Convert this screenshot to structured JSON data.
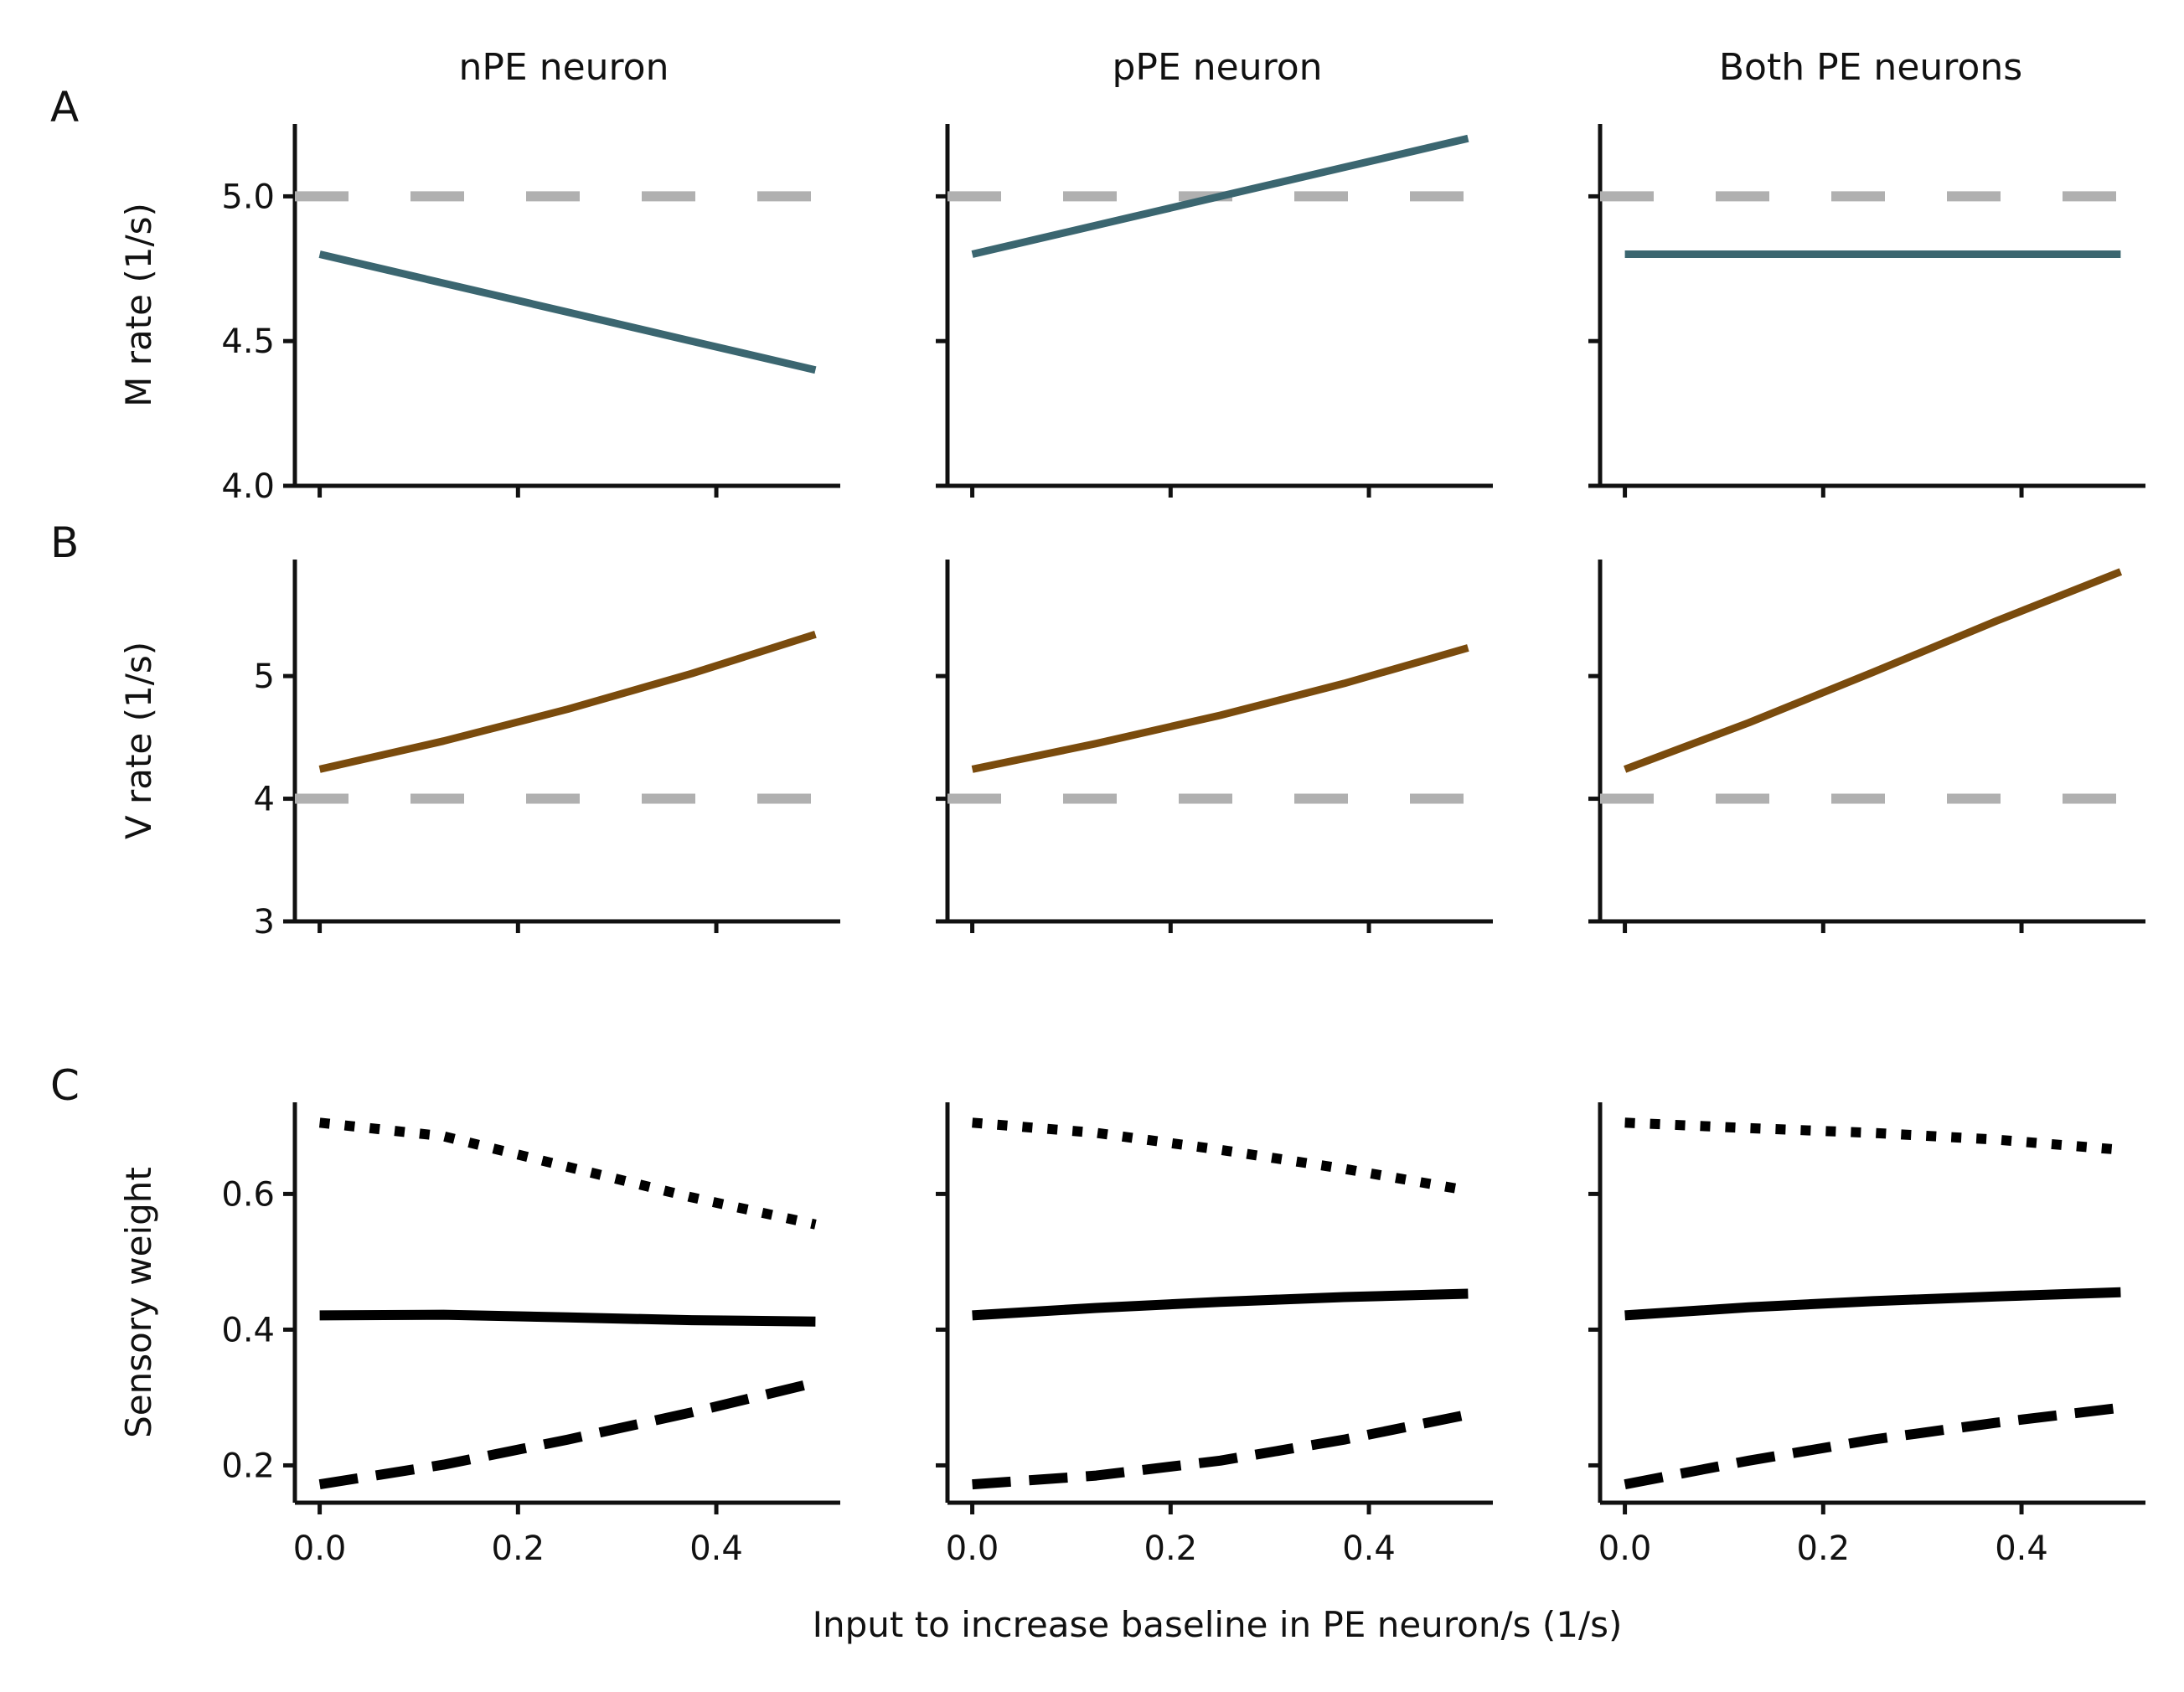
{
  "chart_data": {
    "type": "line",
    "columns": [
      "nPE neuron",
      "pPE neuron",
      "Both PE neurons"
    ],
    "row_letters": [
      "A",
      "B",
      "C"
    ],
    "xlabel": "Input to increase baseline in PE neuron/s (1/s)",
    "x_ticks": [
      0.0,
      0.2,
      0.4
    ],
    "x_tick_labels": [
      "0.0",
      "0.2",
      "0.4"
    ],
    "xlim": [
      -0.025,
      0.525
    ],
    "x": [
      0.0,
      0.125,
      0.25,
      0.375,
      0.5
    ],
    "colors": {
      "mean": "#3b6670",
      "variance": "#7a4b0d",
      "reference": "#b0b0b0",
      "weight": "#000000"
    },
    "rows": [
      {
        "letter": "A",
        "ylabel": "M rate (1/s)",
        "ylim": [
          4.0,
          5.25
        ],
        "yticks": [
          4.0,
          4.5,
          5.0
        ],
        "ytick_labels": [
          "4.0",
          "4.5",
          "5.0"
        ],
        "reference": 5.0,
        "panels": [
          {
            "column": "nPE neuron",
            "series": [
              {
                "style": "solid",
                "color_key": "mean",
                "values": [
                  4.8,
                  4.7,
                  4.6,
                  4.5,
                  4.4
                ]
              }
            ]
          },
          {
            "column": "pPE neuron",
            "series": [
              {
                "style": "solid",
                "color_key": "mean",
                "values": [
                  4.8,
                  4.9,
                  5.0,
                  5.1,
                  5.2
                ]
              }
            ]
          },
          {
            "column": "Both PE neurons",
            "series": [
              {
                "style": "solid",
                "color_key": "mean",
                "values": [
                  4.8,
                  4.8,
                  4.8,
                  4.8,
                  4.8
                ]
              }
            ]
          }
        ]
      },
      {
        "letter": "B",
        "ylabel": "V rate (1/s)",
        "ylim": [
          3.0,
          5.95
        ],
        "yticks": [
          3,
          4,
          5
        ],
        "ytick_labels": [
          "3",
          "4",
          "5"
        ],
        "reference": 4.0,
        "panels": [
          {
            "column": "nPE neuron",
            "series": [
              {
                "style": "solid",
                "color_key": "variance",
                "values": [
                  4.24,
                  4.47,
                  4.73,
                  5.02,
                  5.34
                ]
              }
            ]
          },
          {
            "column": "pPE neuron",
            "series": [
              {
                "style": "solid",
                "color_key": "variance",
                "values": [
                  4.24,
                  4.45,
                  4.68,
                  4.94,
                  5.23
                ]
              }
            ]
          },
          {
            "column": "Both PE neurons",
            "series": [
              {
                "style": "solid",
                "color_key": "variance",
                "values": [
                  4.24,
                  4.62,
                  5.03,
                  5.45,
                  5.85
                ]
              }
            ]
          }
        ]
      },
      {
        "letter": "C",
        "ylabel": "Sensory weight",
        "ylim": [
          0.145,
          0.735
        ],
        "yticks": [
          0.2,
          0.4,
          0.6
        ],
        "ytick_labels": [
          "0.2",
          "0.4",
          "0.6"
        ],
        "reference": null,
        "panels": [
          {
            "column": "nPE neuron",
            "series": [
              {
                "style": "dotted",
                "color_key": "weight",
                "values": [
                  0.705,
                  0.685,
                  0.64,
                  0.595,
                  0.555
                ]
              },
              {
                "style": "solid",
                "color_key": "weight",
                "values": [
                  0.421,
                  0.422,
                  0.418,
                  0.414,
                  0.412
                ]
              },
              {
                "style": "dashed",
                "color_key": "weight",
                "values": [
                  0.172,
                  0.201,
                  0.238,
                  0.278,
                  0.322
                ]
              }
            ]
          },
          {
            "column": "pPE neuron",
            "series": [
              {
                "style": "dotted",
                "color_key": "weight",
                "values": [
                  0.705,
                  0.69,
                  0.665,
                  0.637,
                  0.605
                ]
              },
              {
                "style": "solid",
                "color_key": "weight",
                "values": [
                  0.421,
                  0.432,
                  0.441,
                  0.448,
                  0.453
                ]
              },
              {
                "style": "dashed",
                "color_key": "weight",
                "values": [
                  0.172,
                  0.185,
                  0.207,
                  0.238,
                  0.275
                ]
              }
            ]
          },
          {
            "column": "Both PE neurons",
            "series": [
              {
                "style": "dotted",
                "color_key": "weight",
                "values": [
                  0.705,
                  0.697,
                  0.69,
                  0.68,
                  0.665
                ]
              },
              {
                "style": "solid",
                "color_key": "weight",
                "values": [
                  0.421,
                  0.433,
                  0.442,
                  0.449,
                  0.455
                ]
              },
              {
                "style": "dashed",
                "color_key": "weight",
                "values": [
                  0.172,
                  0.207,
                  0.238,
                  0.263,
                  0.285
                ]
              }
            ]
          }
        ]
      }
    ]
  }
}
